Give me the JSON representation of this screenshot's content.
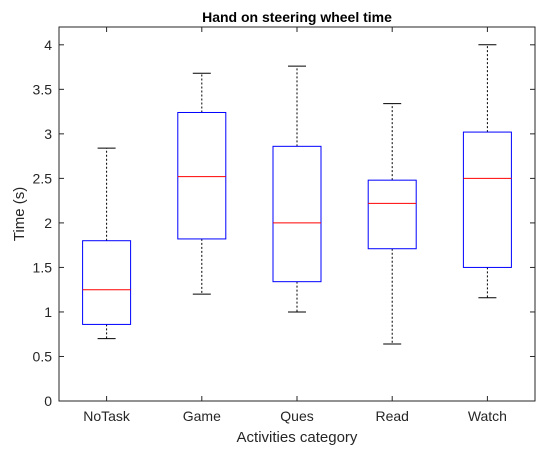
{
  "chart_data": {
    "type": "box",
    "title": "Hand on steering wheel time",
    "xlabel": "Activities category",
    "ylabel": "Time (s)",
    "ylim": [
      0,
      4.2
    ],
    "yticks": [
      "0",
      "0.5",
      "1",
      "1.5",
      "2",
      "2.5",
      "3",
      "3.5",
      "4"
    ],
    "categories": [
      "NoTask",
      "Game",
      "Ques",
      "Read",
      "Watch"
    ],
    "boxes": [
      {
        "whisker_low": 0.7,
        "q1": 0.86,
        "median": 1.25,
        "q3": 1.8,
        "whisker_high": 2.84
      },
      {
        "whisker_low": 1.2,
        "q1": 1.82,
        "median": 2.52,
        "q3": 3.24,
        "whisker_high": 3.68
      },
      {
        "whisker_low": 1.0,
        "q1": 1.34,
        "median": 2.0,
        "q3": 2.86,
        "whisker_high": 3.76
      },
      {
        "whisker_low": 0.64,
        "q1": 1.71,
        "median": 2.22,
        "q3": 2.48,
        "whisker_high": 3.34
      },
      {
        "whisker_low": 1.16,
        "q1": 1.5,
        "median": 2.5,
        "q3": 3.02,
        "whisker_high": 4.0
      }
    ],
    "colors": {
      "box": "#0000ff",
      "median": "#ff0000",
      "whisker": "#000000",
      "axis": "#262626"
    },
    "grid": false
  }
}
